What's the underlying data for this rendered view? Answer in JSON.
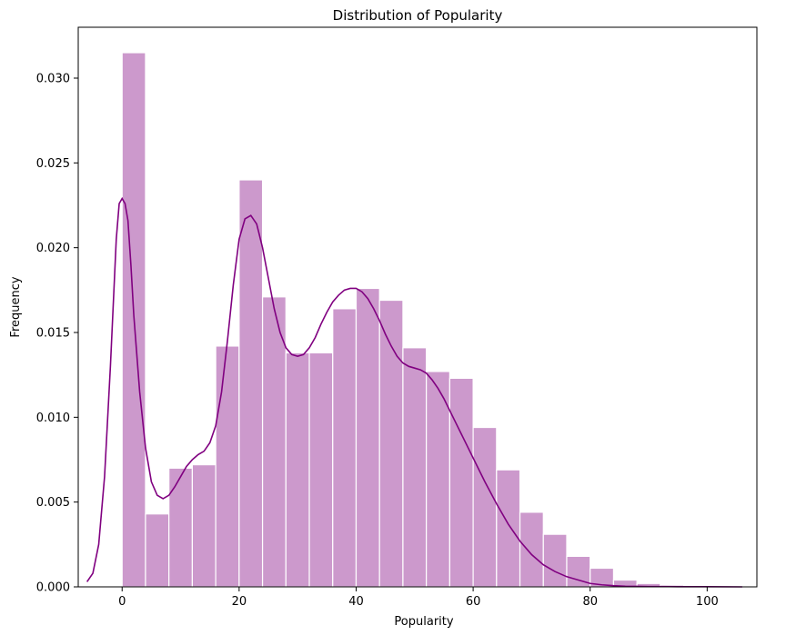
{
  "chart_data": {
    "type": "bar",
    "title": "Distribution of Popularity",
    "xlabel": "Popularity",
    "ylabel": "Frequency",
    "xlim": [
      -7.5,
      108.5
    ],
    "ylim": [
      0,
      0.033
    ],
    "xticks": [
      "0",
      "20",
      "40",
      "60",
      "80",
      "100"
    ],
    "yticks": [
      "0.000",
      "0.005",
      "0.010",
      "0.015",
      "0.020",
      "0.025",
      "0.030"
    ],
    "bin_width": 4,
    "bins": [
      {
        "x0": 0,
        "x1": 4,
        "value": 0.0315
      },
      {
        "x0": 4,
        "x1": 8,
        "value": 0.0043
      },
      {
        "x0": 8,
        "x1": 12,
        "value": 0.007
      },
      {
        "x0": 12,
        "x1": 16,
        "value": 0.0072
      },
      {
        "x0": 16,
        "x1": 20,
        "value": 0.0142
      },
      {
        "x0": 20,
        "x1": 24,
        "value": 0.024
      },
      {
        "x0": 24,
        "x1": 28,
        "value": 0.0171
      },
      {
        "x0": 28,
        "x1": 32,
        "value": 0.0138
      },
      {
        "x0": 32,
        "x1": 36,
        "value": 0.0138
      },
      {
        "x0": 36,
        "x1": 40,
        "value": 0.0164
      },
      {
        "x0": 40,
        "x1": 44,
        "value": 0.0176
      },
      {
        "x0": 44,
        "x1": 48,
        "value": 0.0169
      },
      {
        "x0": 48,
        "x1": 52,
        "value": 0.0141
      },
      {
        "x0": 52,
        "x1": 56,
        "value": 0.0127
      },
      {
        "x0": 56,
        "x1": 60,
        "value": 0.0123
      },
      {
        "x0": 60,
        "x1": 64,
        "value": 0.0094
      },
      {
        "x0": 64,
        "x1": 68,
        "value": 0.0069
      },
      {
        "x0": 68,
        "x1": 72,
        "value": 0.0044
      },
      {
        "x0": 72,
        "x1": 76,
        "value": 0.0031
      },
      {
        "x0": 76,
        "x1": 80,
        "value": 0.0018
      },
      {
        "x0": 80,
        "x1": 84,
        "value": 0.0011
      },
      {
        "x0": 84,
        "x1": 88,
        "value": 0.0004
      },
      {
        "x0": 88,
        "x1": 92,
        "value": 0.0002
      },
      {
        "x0": 92,
        "x1": 96,
        "value": 0.0001
      },
      {
        "x0": 96,
        "x1": 100,
        "value": 5e-05
      },
      {
        "x0": 100,
        "x1": 104,
        "value": 2e-05
      }
    ],
    "kde": {
      "x": [
        -6,
        -5,
        -4,
        -3,
        -2,
        -1,
        -0.5,
        0,
        0.5,
        1,
        1.5,
        2,
        3,
        4,
        5,
        6,
        7,
        8,
        9,
        10,
        11,
        12,
        13,
        14,
        15,
        16,
        17,
        18,
        19,
        20,
        21,
        22,
        23,
        24,
        25,
        26,
        27,
        28,
        29,
        30,
        31,
        32,
        33,
        34,
        35,
        36,
        37,
        38,
        39,
        40,
        41,
        42,
        43,
        44,
        45,
        46,
        47,
        48,
        49,
        50,
        51,
        52,
        53,
        54,
        55,
        56,
        57,
        58,
        59,
        60,
        62,
        64,
        66,
        68,
        70,
        72,
        74,
        76,
        78,
        80,
        82,
        84,
        86,
        88,
        90,
        92,
        95,
        100,
        106
      ],
      "y": [
        0.0003,
        0.0008,
        0.0025,
        0.0065,
        0.013,
        0.0205,
        0.0226,
        0.0229,
        0.0226,
        0.0216,
        0.019,
        0.016,
        0.0115,
        0.0082,
        0.0062,
        0.0054,
        0.0052,
        0.0054,
        0.0059,
        0.0065,
        0.0071,
        0.0075,
        0.0078,
        0.008,
        0.0085,
        0.0095,
        0.0115,
        0.0145,
        0.0178,
        0.0205,
        0.0217,
        0.0219,
        0.0214,
        0.02,
        0.0182,
        0.0164,
        0.015,
        0.0141,
        0.0137,
        0.0136,
        0.0137,
        0.0141,
        0.0147,
        0.0155,
        0.0162,
        0.0168,
        0.0172,
        0.0175,
        0.0176,
        0.0176,
        0.0174,
        0.017,
        0.0164,
        0.0157,
        0.0149,
        0.0142,
        0.0136,
        0.0132,
        0.013,
        0.0129,
        0.0128,
        0.0126,
        0.0122,
        0.0117,
        0.0111,
        0.0104,
        0.0097,
        0.009,
        0.0083,
        0.0076,
        0.0062,
        0.0049,
        0.0037,
        0.0027,
        0.0019,
        0.0013,
        0.0009,
        0.0006,
        0.0004,
        0.0002,
        0.00012,
        7e-05,
        4e-05,
        3e-05,
        2e-05,
        2e-05,
        1e-05,
        1e-05,
        0.0
      ]
    },
    "colors": {
      "bar": "#cc99cc",
      "bar_edge": "#ffffff",
      "kde": "#800080"
    }
  }
}
